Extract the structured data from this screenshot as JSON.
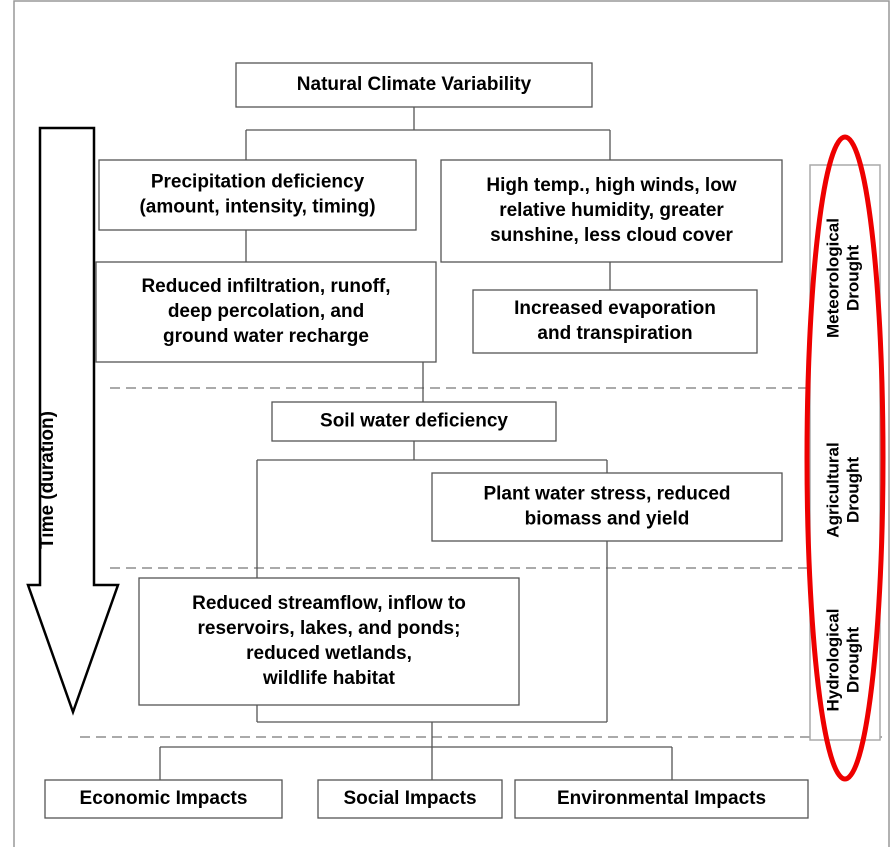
{
  "nodes": [
    {
      "lines": [
        "Natural Climate Variability"
      ]
    },
    {
      "lines": [
        "Precipitation deficiency",
        "(amount, intensity, timing)"
      ]
    },
    {
      "lines": [
        "High temp., high winds, low",
        "relative humidity, greater",
        "sunshine, less cloud cover"
      ]
    },
    {
      "lines": [
        "Reduced infiltration, runoff,",
        "deep percolation, and",
        "ground water recharge"
      ]
    },
    {
      "lines": [
        "Increased evaporation",
        "and transpiration"
      ]
    },
    {
      "lines": [
        "Soil water deficiency"
      ]
    },
    {
      "lines": [
        "Plant water stress, reduced",
        "biomass and yield"
      ]
    },
    {
      "lines": [
        "Reduced streamflow, inflow to",
        "reservoirs, lakes, and ponds;",
        "reduced wetlands,",
        "wildlife habitat"
      ]
    },
    {
      "lines": [
        "Economic Impacts"
      ]
    },
    {
      "lines": [
        "Social Impacts"
      ]
    },
    {
      "lines": [
        "Environmental Impacts"
      ]
    }
  ],
  "time_label": "Time (duration)",
  "stages": [
    {
      "lines": [
        "Meteorological",
        "Drought"
      ]
    },
    {
      "lines": [
        "Agricultural",
        "Drought"
      ]
    },
    {
      "lines": [
        "Hydrological",
        "Drought"
      ]
    }
  ]
}
